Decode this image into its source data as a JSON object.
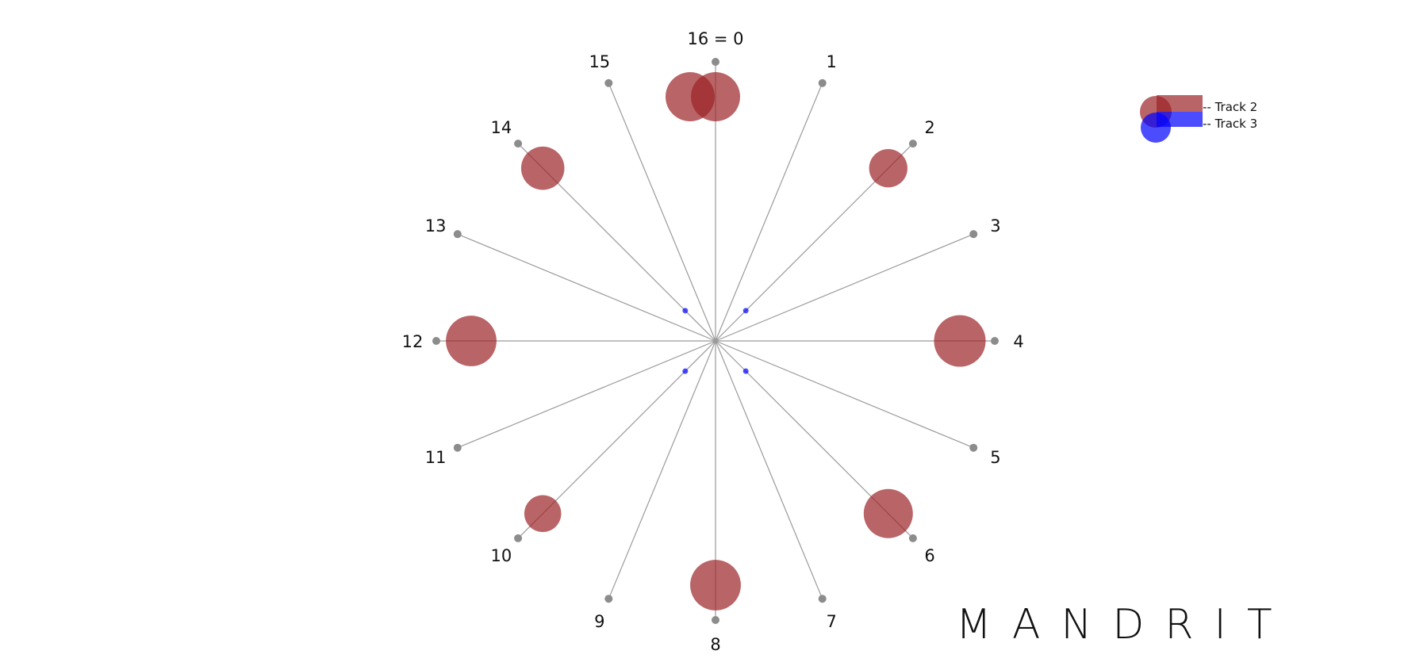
{
  "diagram": {
    "steps": 16,
    "step_labels": [
      "16 = 0",
      "1",
      "2",
      "3",
      "4",
      "5",
      "6",
      "7",
      "8",
      "9",
      "10",
      "11",
      "12",
      "13",
      "14",
      "15"
    ],
    "tracks": [
      {
        "name": "Track 2",
        "color": "#9b2226",
        "opacity": 0.7,
        "hits": [
          {
            "step": 0,
            "size": 1.0,
            "offset": -1
          },
          {
            "step": 0,
            "size": 1.0,
            "offset": 0
          },
          {
            "step": 2,
            "size": 0.78,
            "offset": 0
          },
          {
            "step": 4,
            "size": 1.05,
            "offset": 0
          },
          {
            "step": 6,
            "size": 1.0,
            "offset": 0
          },
          {
            "step": 8,
            "size": 1.03,
            "offset": 0
          },
          {
            "step": 10,
            "size": 0.75,
            "offset": 0
          },
          {
            "step": 12,
            "size": 1.03,
            "offset": 0
          },
          {
            "step": 14,
            "size": 0.88,
            "offset": 0
          }
        ]
      },
      {
        "name": "Track 3",
        "color": "#0000ff",
        "opacity": 0.7,
        "hits": [
          {
            "step": 2,
            "size": 0.1,
            "offset": 0
          },
          {
            "step": 6,
            "size": 0.1,
            "offset": 0
          },
          {
            "step": 10,
            "size": 0.1,
            "offset": 0
          },
          {
            "step": 14,
            "size": 0.1,
            "offset": 0
          }
        ]
      }
    ]
  },
  "legend": {
    "items": [
      {
        "label": "-- Track 2",
        "color": "#9b2226"
      },
      {
        "label": "-- Track 3",
        "color": "#0000ff"
      }
    ]
  },
  "brand": {
    "text": "MANDRIT"
  }
}
